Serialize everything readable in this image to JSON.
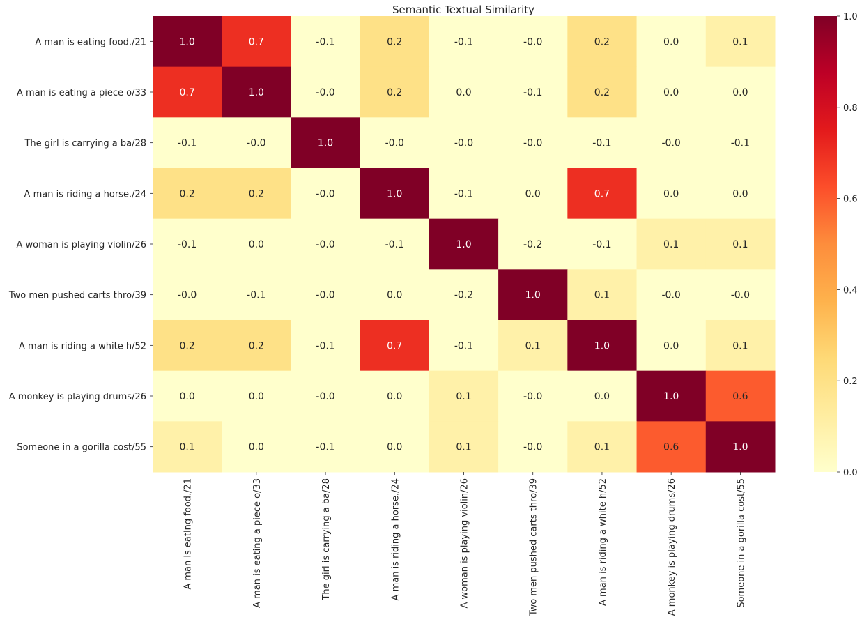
{
  "chart_data": {
    "type": "heatmap",
    "title": "Semantic Textual Similarity",
    "xlabel": "",
    "ylabel": "",
    "row_labels": [
      "A man is eating food./21",
      "A man is eating a piece o/33",
      "The girl is carrying a ba/28",
      "A man is riding a horse./24",
      "A woman is playing violin/26",
      "Two men pushed carts thro/39",
      "A man is riding a white h/52",
      "A monkey is playing drums/26",
      "Someone in a gorilla cost/55"
    ],
    "col_labels": [
      "A man is eating food./21",
      "A man is eating a piece o/33",
      "The girl is carrying a ba/28",
      "A man is riding a horse./24",
      "A woman is playing violin/26",
      "Two men pushed carts thro/39",
      "A man is riding a white h/52",
      "A monkey is playing drums/26",
      "Someone in a gorilla cost/55"
    ],
    "values": [
      [
        1.0,
        0.7,
        -0.1,
        0.2,
        -0.1,
        -0.0,
        0.2,
        0.0,
        0.1
      ],
      [
        0.7,
        1.0,
        -0.0,
        0.2,
        0.0,
        -0.1,
        0.2,
        0.0,
        0.0
      ],
      [
        -0.1,
        -0.0,
        1.0,
        -0.0,
        -0.0,
        -0.0,
        -0.1,
        -0.0,
        -0.1
      ],
      [
        0.2,
        0.2,
        -0.0,
        1.0,
        -0.1,
        0.0,
        0.7,
        0.0,
        0.0
      ],
      [
        -0.1,
        0.0,
        -0.0,
        -0.1,
        1.0,
        -0.2,
        -0.1,
        0.1,
        0.1
      ],
      [
        -0.0,
        -0.1,
        -0.0,
        0.0,
        -0.2,
        1.0,
        0.1,
        -0.0,
        -0.0
      ],
      [
        0.2,
        0.2,
        -0.1,
        0.7,
        -0.1,
        0.1,
        1.0,
        0.0,
        0.1
      ],
      [
        0.0,
        0.0,
        -0.0,
        0.0,
        0.1,
        -0.0,
        0.0,
        1.0,
        0.6
      ],
      [
        0.1,
        0.0,
        -0.1,
        0.0,
        0.1,
        -0.0,
        0.1,
        0.6,
        1.0
      ]
    ],
    "annotations": [
      [
        "1.0",
        "0.7",
        "-0.1",
        "0.2",
        "-0.1",
        "-0.0",
        "0.2",
        "0.0",
        "0.1"
      ],
      [
        "0.7",
        "1.0",
        "-0.0",
        "0.2",
        "0.0",
        "-0.1",
        "0.2",
        "0.0",
        "0.0"
      ],
      [
        "-0.1",
        "-0.0",
        "1.0",
        "-0.0",
        "-0.0",
        "-0.0",
        "-0.1",
        "-0.0",
        "-0.1"
      ],
      [
        "0.2",
        "0.2",
        "-0.0",
        "1.0",
        "-0.1",
        "0.0",
        "0.7",
        "0.0",
        "0.0"
      ],
      [
        "-0.1",
        "0.0",
        "-0.0",
        "-0.1",
        "1.0",
        "-0.2",
        "-0.1",
        "0.1",
        "0.1"
      ],
      [
        "-0.0",
        "-0.1",
        "-0.0",
        "0.0",
        "-0.2",
        "1.0",
        "0.1",
        "-0.0",
        "-0.0"
      ],
      [
        "0.2",
        "0.2",
        "-0.1",
        "0.7",
        "-0.1",
        "0.1",
        "1.0",
        "0.0",
        "0.1"
      ],
      [
        "0.0",
        "0.0",
        "-0.0",
        "0.0",
        "0.1",
        "-0.0",
        "0.0",
        "1.0",
        "0.6"
      ],
      [
        "0.1",
        "0.0",
        "-0.1",
        "0.0",
        "0.1",
        "-0.0",
        "0.1",
        "0.6",
        "1.0"
      ]
    ],
    "colormap": "YlOrRd",
    "colormap_stops": [
      "#ffffcc",
      "#ffeda0",
      "#fed976",
      "#feb24c",
      "#fd8d3c",
      "#fc4e2a",
      "#e31a1c",
      "#bd0026",
      "#800026"
    ],
    "vmin": 0.0,
    "vmax": 1.0,
    "colorbar_ticks": [
      0.0,
      0.2,
      0.4,
      0.6,
      0.8,
      1.0
    ],
    "colorbar_tick_labels": [
      "0.0",
      "0.2",
      "0.4",
      "0.6",
      "0.8",
      "1.0"
    ]
  }
}
